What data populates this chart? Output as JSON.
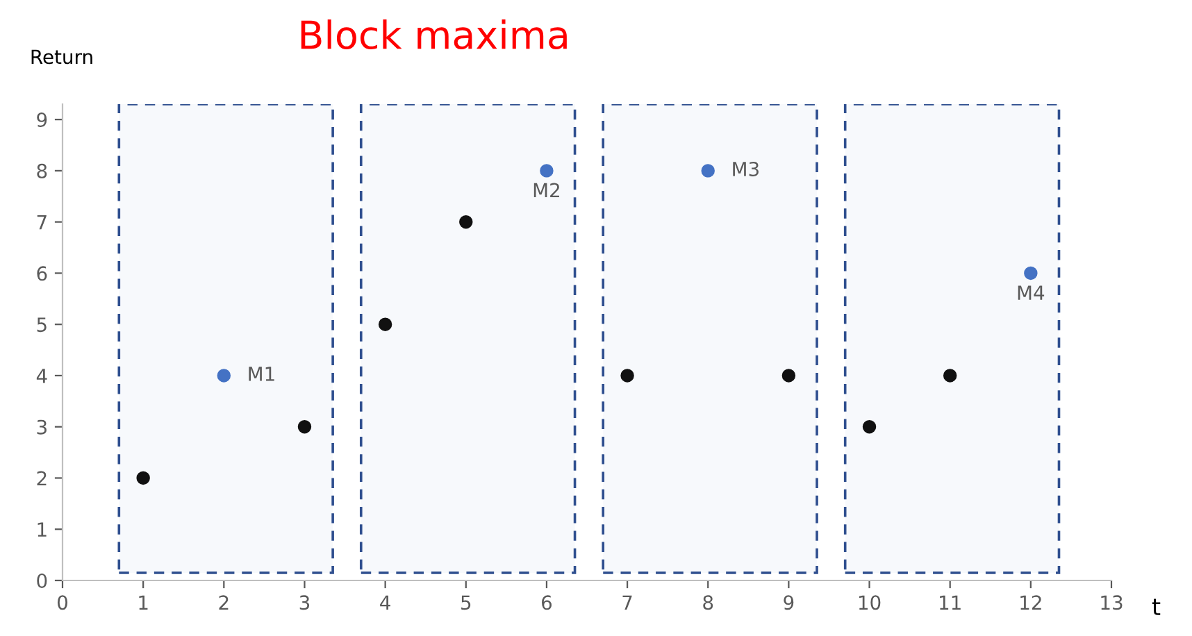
{
  "chart_data": {
    "type": "scatter",
    "title": "Block maxima",
    "xlabel": "t",
    "ylabel": "Return",
    "series": [
      {
        "color": "#111111",
        "x": [
          1,
          3,
          4,
          5,
          7,
          9,
          10,
          11
        ],
        "values": [
          2,
          3,
          5,
          7,
          4,
          4,
          3,
          4
        ]
      },
      {
        "color": "#4472c4",
        "x": [
          2,
          6,
          8,
          12
        ],
        "values": [
          4,
          8,
          8,
          6
        ]
      }
    ],
    "annotations": [
      {
        "text": "M1",
        "x": 2,
        "y": 4
      },
      {
        "text": "M2",
        "x": 6,
        "y": 8
      },
      {
        "text": "M3",
        "x": 8,
        "y": 8
      },
      {
        "text": "M4",
        "x": 12,
        "y": 6
      }
    ],
    "bands": [
      {
        "axis": "x",
        "from": 0.7,
        "to": 3.35,
        "color": "#2f4f8f"
      },
      {
        "axis": "x",
        "from": 3.7,
        "to": 6.35,
        "color": "#2f4f8f"
      },
      {
        "axis": "x",
        "from": 6.7,
        "to": 9.35,
        "color": "#2f4f8f"
      },
      {
        "axis": "x",
        "from": 9.7,
        "to": 12.35,
        "color": "#2f4f8f"
      }
    ],
    "xlim": [
      0,
      13
    ],
    "xticks": [
      0,
      1,
      2,
      3,
      4,
      5,
      6,
      7,
      8,
      9,
      10,
      11,
      12,
      13
    ],
    "ylim": [
      0,
      9.3
    ],
    "yticks": [
      0,
      1,
      2,
      3,
      4,
      5,
      6,
      7,
      8,
      9
    ],
    "marker": "circle",
    "grid": false,
    "legend": false
  }
}
